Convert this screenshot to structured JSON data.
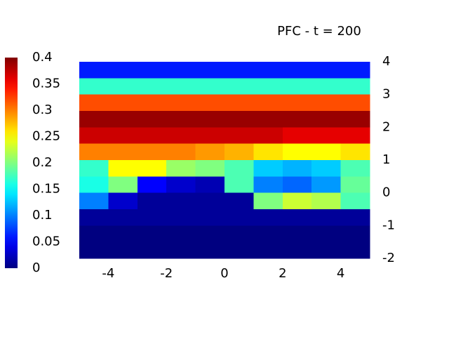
{
  "chart_data": {
    "type": "heatmap",
    "title": "PFC - t = 200",
    "x": [
      -4.5,
      -3.5,
      -2.5,
      -1.5,
      -0.5,
      0.5,
      1.5,
      2.5,
      3.5,
      4.5
    ],
    "y": [
      3.75,
      3.25,
      2.75,
      2.25,
      1.75,
      1.25,
      0.75,
      0.25,
      -0.25,
      -0.75,
      -1.25,
      -1.75
    ],
    "values": [
      [
        0.06,
        0.06,
        0.06,
        0.06,
        0.06,
        0.06,
        0.06,
        0.06,
        0.06,
        0.06
      ],
      [
        0.17,
        0.17,
        0.17,
        0.17,
        0.17,
        0.17,
        0.17,
        0.17,
        0.17,
        0.17
      ],
      [
        0.32,
        0.32,
        0.32,
        0.32,
        0.32,
        0.32,
        0.32,
        0.32,
        0.32,
        0.32
      ],
      [
        0.39,
        0.39,
        0.39,
        0.39,
        0.39,
        0.39,
        0.39,
        0.39,
        0.39,
        0.39
      ],
      [
        0.37,
        0.37,
        0.37,
        0.37,
        0.37,
        0.37,
        0.37,
        0.36,
        0.36,
        0.36
      ],
      [
        0.3,
        0.3,
        0.3,
        0.3,
        0.29,
        0.28,
        0.26,
        0.25,
        0.25,
        0.26
      ],
      [
        0.17,
        0.25,
        0.25,
        0.21,
        0.2,
        0.18,
        0.13,
        0.12,
        0.13,
        0.18
      ],
      [
        0.16,
        0.2,
        0.05,
        0.03,
        0.02,
        0.18,
        0.1,
        0.09,
        0.11,
        0.19
      ],
      [
        0.1,
        0.03,
        0.01,
        0.01,
        0.01,
        0.01,
        0.2,
        0.23,
        0.22,
        0.18
      ],
      [
        0.01,
        0.01,
        0.01,
        0.01,
        0.01,
        0.01,
        0.01,
        0.01,
        0.01,
        0.01
      ],
      [
        0,
        0,
        0,
        0,
        0,
        0,
        0,
        0,
        0,
        0
      ],
      [
        0,
        0,
        0,
        0,
        0,
        0,
        0,
        0,
        0,
        0
      ]
    ],
    "xlim": [
      -5,
      5
    ],
    "ylim": [
      -2,
      4
    ],
    "xticks": [
      -4,
      -2,
      0,
      2,
      4
    ],
    "yticks": [
      -2,
      -1,
      0,
      1,
      2,
      3,
      4
    ],
    "colormap": "jet",
    "clim": [
      0,
      0.4
    ],
    "cticks": [
      0,
      0.05,
      0.1,
      0.15,
      0.2,
      0.25,
      0.3,
      0.35,
      0.4
    ]
  }
}
